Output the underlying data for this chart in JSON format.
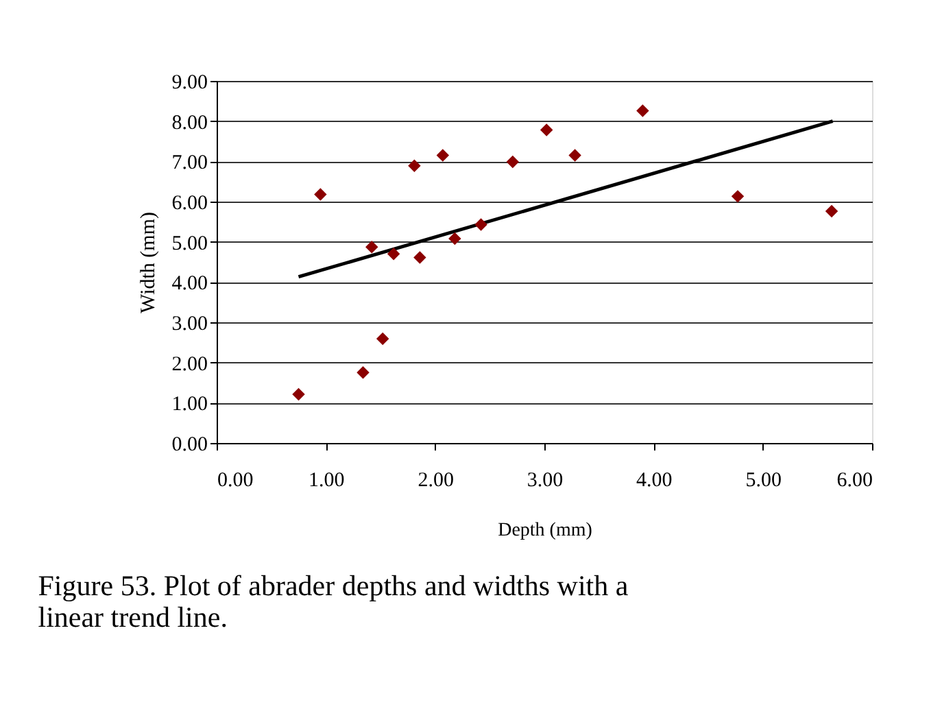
{
  "chart_data": {
    "type": "scatter",
    "xlabel": "Depth (mm)",
    "ylabel": "Width (mm)",
    "annotations": [
      "Figure 53. Plot of abrader depths and widths with a linear trend line."
    ],
    "series": [
      {
        "color": "#8b0000",
        "marker": "diamond",
        "x": [
          0.75,
          0.95,
          1.34,
          1.42,
          1.52,
          1.62,
          1.81,
          1.86,
          2.07,
          2.18,
          2.42,
          2.71,
          3.02,
          3.28,
          3.9,
          4.77,
          5.63
        ],
        "values": [
          1.21,
          6.18,
          1.75,
          4.87,
          2.59,
          4.7,
          6.89,
          4.61,
          7.15,
          5.08,
          5.43,
          6.99,
          7.78,
          7.15,
          8.26,
          6.13,
          5.76
        ]
      },
      {
        "type": "line",
        "color": "#000000",
        "x": [
          0.75,
          5.64
        ],
        "values": [
          4.13,
          8.0
        ]
      }
    ],
    "xlim": [
      0,
      6
    ],
    "ylim": [
      0,
      9
    ],
    "xticks": [
      {
        "value": 0,
        "label": "0.00"
      },
      {
        "value": 1,
        "label": "1.00"
      },
      {
        "value": 2,
        "label": "2.00"
      },
      {
        "value": 3,
        "label": "3.00"
      },
      {
        "value": 4,
        "label": "4.00"
      },
      {
        "value": 5,
        "label": "5.00"
      },
      {
        "value": 6,
        "label": "6.00"
      }
    ],
    "yticks": [
      {
        "value": 0,
        "label": "0.00"
      },
      {
        "value": 1,
        "label": "1.00"
      },
      {
        "value": 2,
        "label": "2.00"
      },
      {
        "value": 3,
        "label": "3.00"
      },
      {
        "value": 4,
        "label": "4.00"
      },
      {
        "value": 5,
        "label": "5.00"
      },
      {
        "value": 6,
        "label": "6.00"
      },
      {
        "value": 7,
        "label": "7.00"
      },
      {
        "value": 8,
        "label": "8.00"
      },
      {
        "value": 9,
        "label": "9.00"
      }
    ],
    "grid": "y"
  }
}
